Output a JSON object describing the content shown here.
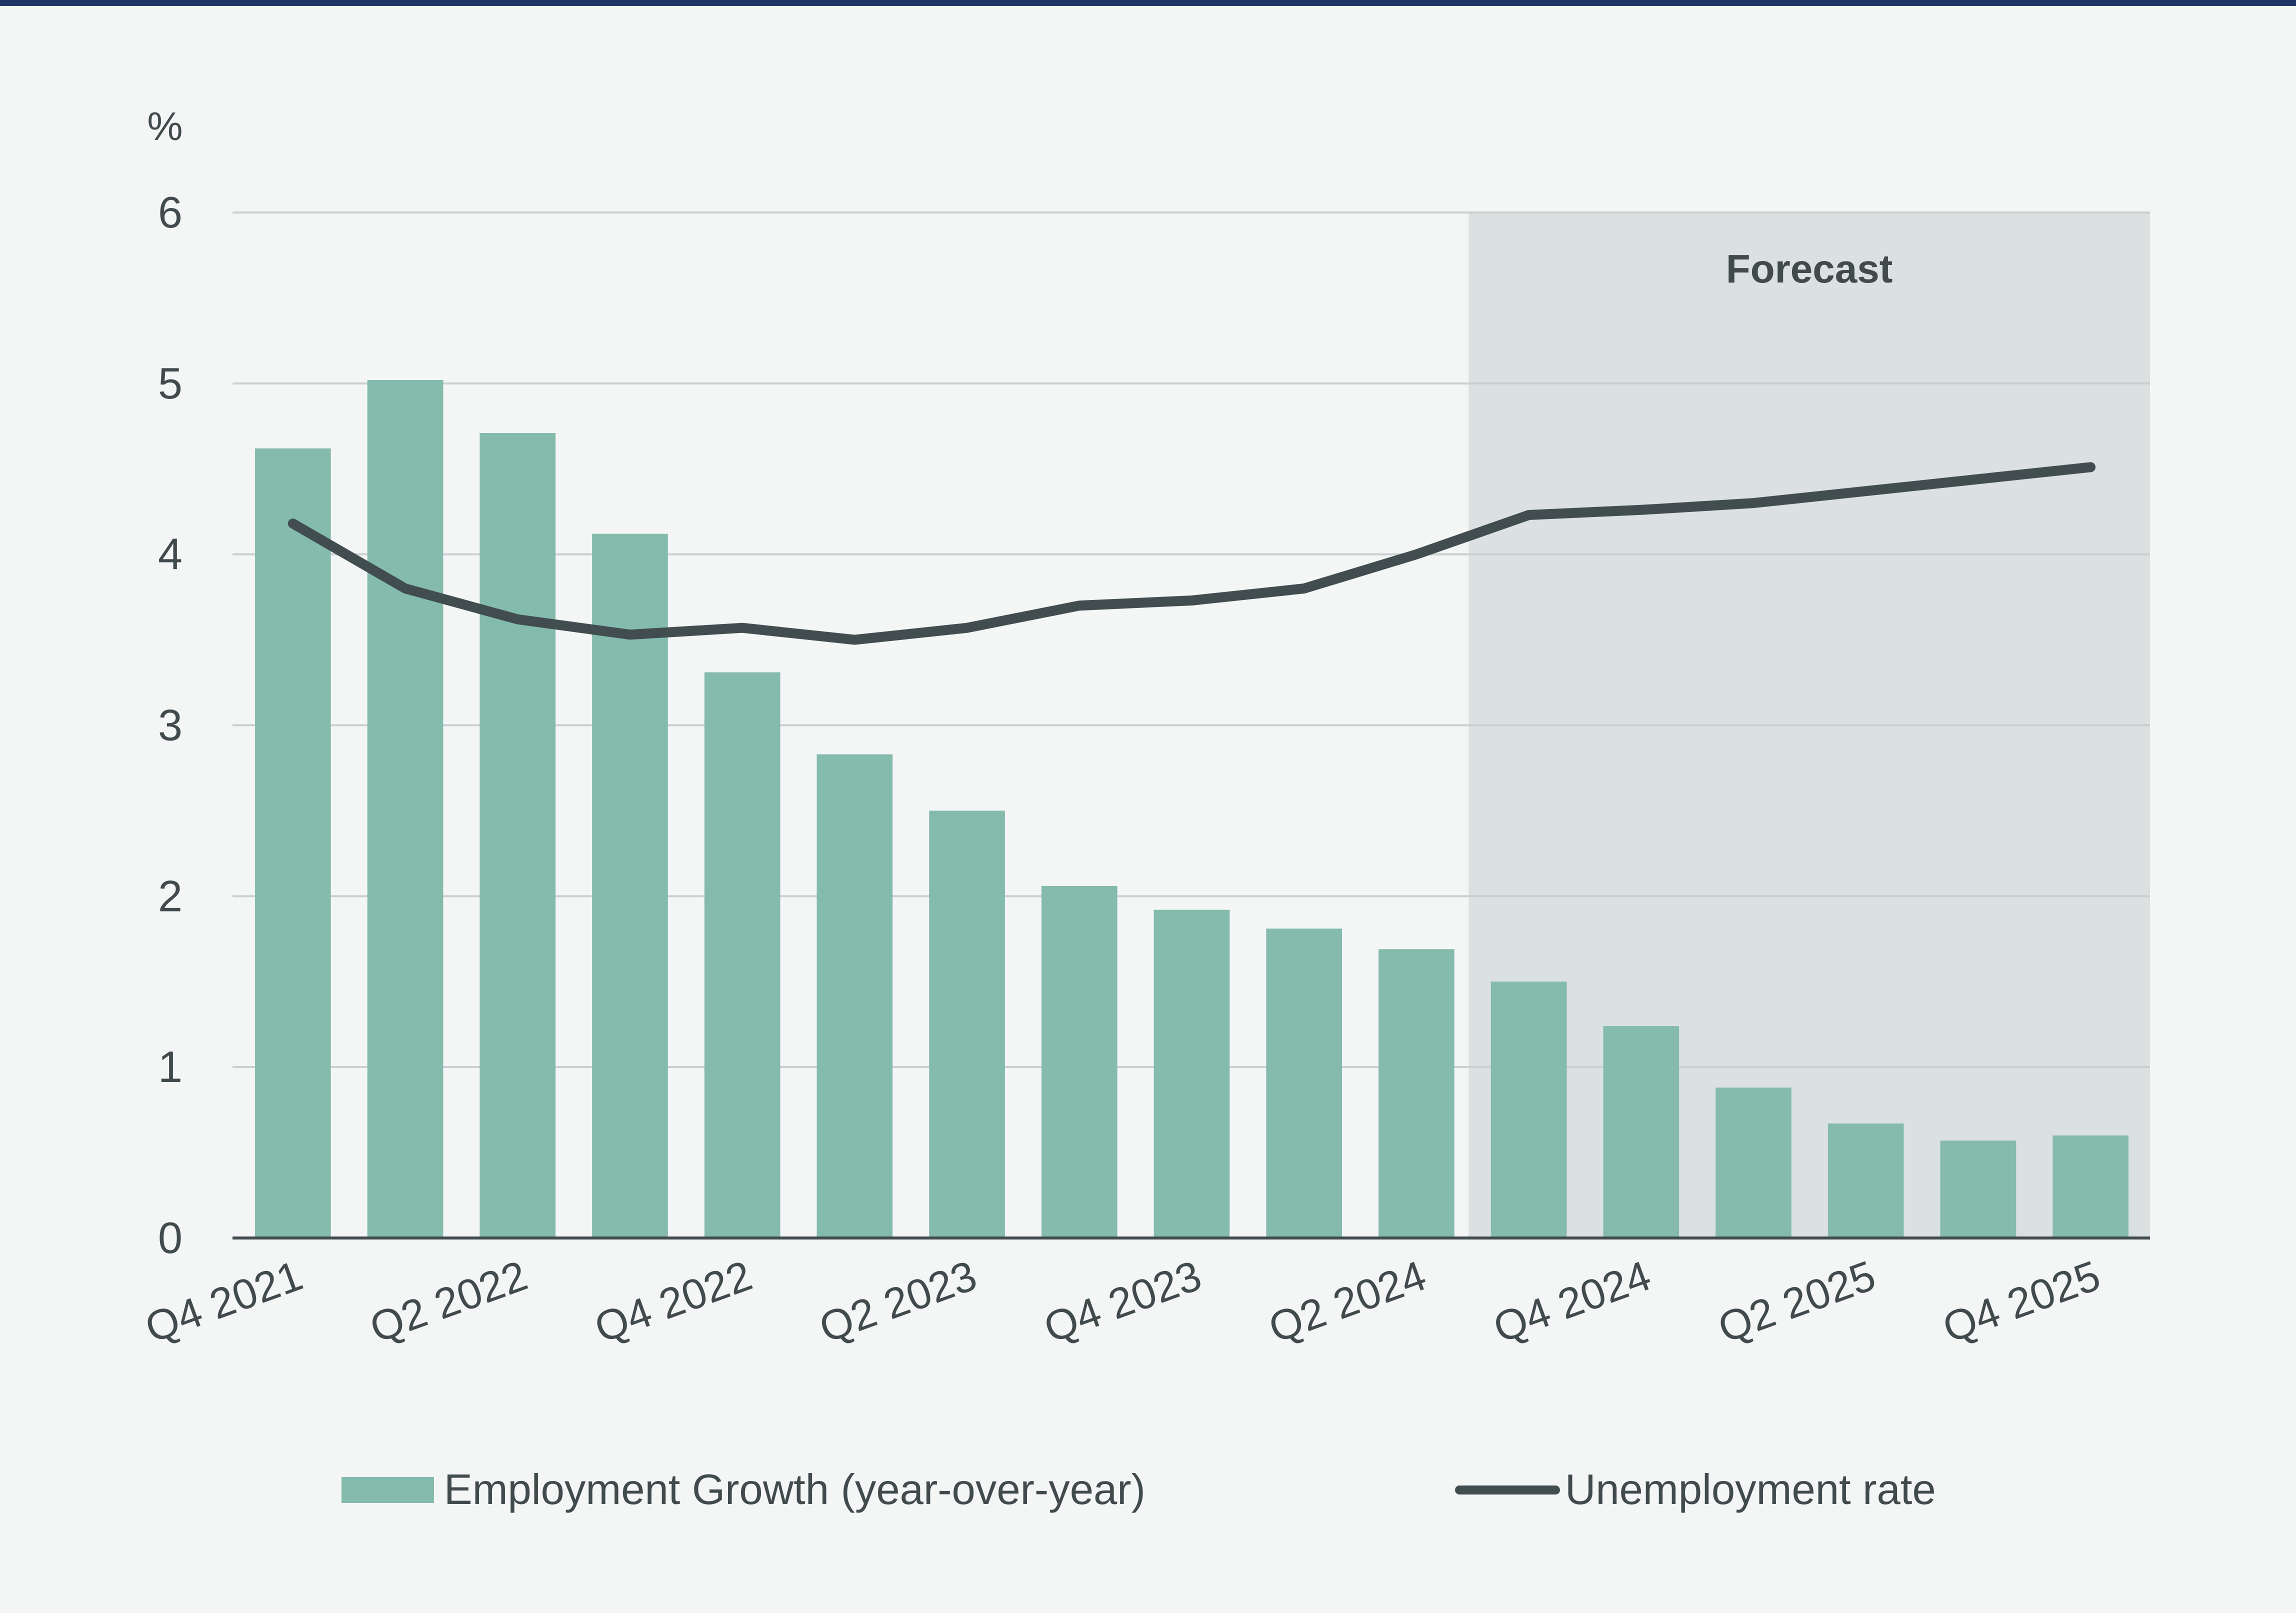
{
  "chart_data": {
    "type": "bar",
    "unit_label": "%",
    "ylim": [
      0,
      6
    ],
    "yticks": [
      0,
      1,
      2,
      3,
      4,
      5,
      6
    ],
    "grid": true,
    "categories": [
      "Q4 2021",
      "Q1 2022",
      "Q2 2022",
      "Q3 2022",
      "Q4 2022",
      "Q1 2023",
      "Q2 2023",
      "Q3 2023",
      "Q4 2023",
      "Q1 2024",
      "Q2 2024",
      "Q3 2024",
      "Q4 2024",
      "Q1 2025",
      "Q2 2025",
      "Q3 2025",
      "Q4 2025"
    ],
    "x_tick_labels": [
      "Q4 2021",
      "Q2 2022",
      "Q4 2022",
      "Q2 2023",
      "Q4 2023",
      "Q2 2024",
      "Q4 2024",
      "Q2 2025",
      "Q4 2025"
    ],
    "series": [
      {
        "name": "Employment Growth (year-over-year)",
        "type": "bar",
        "color": "#84bbad",
        "values": [
          4.62,
          5.02,
          4.71,
          4.12,
          3.31,
          2.83,
          2.5,
          2.06,
          1.92,
          1.81,
          1.69,
          1.5,
          1.24,
          0.88,
          0.67,
          0.57,
          0.6
        ]
      },
      {
        "name": "Unemployment rate",
        "type": "line",
        "color": "#414d4f",
        "values": [
          4.18,
          3.8,
          3.62,
          3.53,
          3.57,
          3.5,
          3.57,
          3.7,
          3.73,
          3.8,
          4.0,
          4.23,
          4.26,
          4.3,
          4.37,
          4.44,
          4.51
        ]
      }
    ],
    "forecast": {
      "label": "Forecast",
      "start_category": "Q3 2024",
      "end_category": "Q4 2025"
    },
    "legend_position": "bottom"
  },
  "colors": {
    "background": "#f4f6f5",
    "forecast_shade": "#dbe1e0",
    "gridline": "#c9d0cf",
    "axis": "#414a4c",
    "top_rule": "#1f3566"
  }
}
